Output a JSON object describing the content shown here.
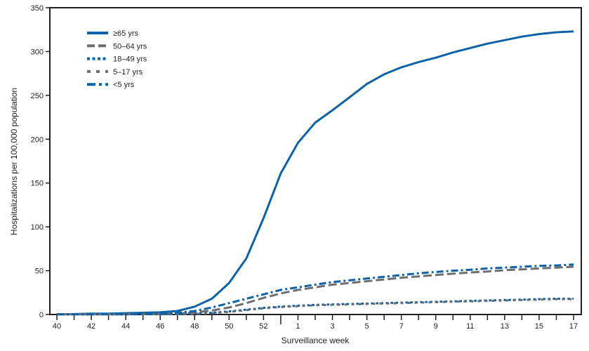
{
  "chart_data": {
    "type": "line",
    "title": "",
    "xlabel": "Surveillance week",
    "ylabel": "Hospitalizations per 100,000 population",
    "ylim": [
      0,
      350
    ],
    "yticks": [
      0,
      50,
      100,
      150,
      200,
      250,
      300,
      350
    ],
    "x": [
      "40",
      "41",
      "42",
      "43",
      "44",
      "45",
      "46",
      "47",
      "48",
      "49",
      "50",
      "51",
      "52",
      "53",
      "1",
      "2",
      "3",
      "4",
      "5",
      "6",
      "7",
      "8",
      "9",
      "10",
      "11",
      "12",
      "13",
      "14",
      "15",
      "16",
      "17"
    ],
    "xtick_labels": [
      "40",
      "42",
      "44",
      "46",
      "48",
      "50",
      "52",
      "1",
      "3",
      "5",
      "7",
      "9",
      "11",
      "13",
      "15",
      "17"
    ],
    "grid": false,
    "legend_placement": "top-left",
    "series": [
      {
        "name": "≥65 yrs",
        "color": "#0b62a8",
        "style": "solid",
        "values": [
          0,
          0.5,
          1,
          1,
          1.5,
          2,
          2.5,
          4,
          9,
          18,
          36,
          64,
          110,
          161,
          196,
          219,
          233,
          248,
          263,
          274,
          282,
          288,
          293,
          299,
          304,
          309,
          313,
          317,
          320,
          322,
          323
        ]
      },
      {
        "name": "50–64 yrs",
        "color": "#6d6e71",
        "style": "dashed",
        "values": [
          0.3,
          0.3,
          0.3,
          0.4,
          0.4,
          0.5,
          0.6,
          1,
          2.5,
          4.5,
          8,
          13,
          19,
          24,
          28,
          31,
          34,
          36,
          38,
          40,
          42,
          43.5,
          45,
          46.5,
          48,
          49,
          50.5,
          51.5,
          52.5,
          53.5,
          54.5
        ]
      },
      {
        "name": "18–49 yrs",
        "color": "#0b62a8",
        "style": "dotted",
        "values": [
          0.2,
          0.2,
          0.2,
          0.2,
          0.2,
          0.3,
          0.3,
          0.5,
          1,
          2,
          3.5,
          5.5,
          7.5,
          9,
          10,
          11,
          11.5,
          12,
          12.5,
          13,
          13.5,
          14,
          14.5,
          15,
          15.5,
          16,
          16.5,
          17,
          17.5,
          18,
          18
        ]
      },
      {
        "name": "5–17 yrs",
        "color": "#6d6e71",
        "style": "sparse-dashed",
        "values": [
          0.1,
          0.1,
          0.1,
          0.1,
          0.2,
          0.2,
          0.2,
          0.4,
          0.8,
          1.5,
          3,
          5,
          7,
          8.5,
          9.5,
          10.5,
          11,
          11.5,
          12,
          12.5,
          13,
          13.5,
          14,
          14.5,
          15,
          15.5,
          16,
          16.5,
          17,
          17.5,
          17.5
        ]
      },
      {
        "name": "<5 yrs",
        "color": "#0b62a8",
        "style": "dash-dot",
        "values": [
          0.2,
          0.2,
          0.2,
          0.2,
          0.3,
          0.5,
          1,
          2,
          4,
          8,
          13,
          18,
          23,
          28,
          31,
          34,
          37,
          39,
          41,
          43,
          45,
          47,
          48.5,
          50,
          51,
          52.5,
          53.5,
          54.5,
          55.5,
          56,
          57
        ]
      }
    ]
  }
}
